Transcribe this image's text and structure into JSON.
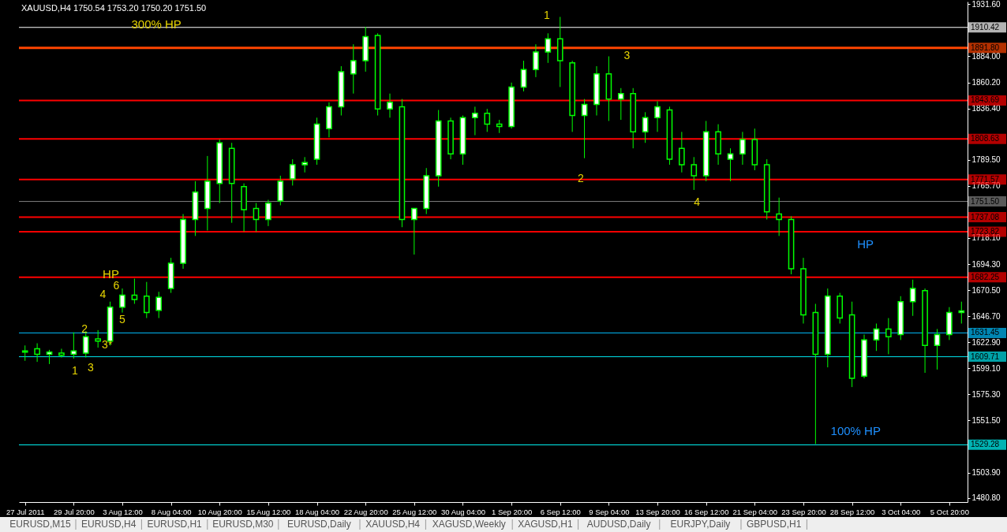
{
  "chart_data": {
    "type": "candlestick",
    "title": "XAUUSD,H4  1750.54 1753.20 1750.20 1751.50",
    "categories": [
      "27 Jul 2011",
      null,
      null,
      null,
      "29 Jul 20:00",
      null,
      null,
      null,
      "3 Aug 12:00",
      null,
      null,
      null,
      "8 Aug 04:00",
      null,
      null,
      null,
      "10 Aug 20:00",
      null,
      null,
      null,
      "15 Aug 12:00",
      null,
      null,
      null,
      "18 Aug 04:00",
      null,
      null,
      null,
      "22 Aug 20:00",
      null,
      null,
      null,
      "25 Aug 12:00",
      null,
      null,
      null,
      "30 Aug 04:00",
      null,
      null,
      null,
      "1 Sep 20:00",
      null,
      null,
      null,
      "6 Sep 12:00",
      null,
      null,
      null,
      "9 Sep 04:00",
      null,
      null,
      null,
      "13 Sep 20:00",
      null,
      null,
      null,
      "16 Sep 12:00",
      null,
      null,
      null,
      "21 Sep 04:00",
      null,
      null,
      null,
      "23 Sep 20:00",
      null,
      null,
      null,
      "28 Sep 12:00",
      null,
      null,
      null,
      "3 Oct 04:00",
      null,
      null,
      null,
      "5 Oct 20:00",
      null
    ],
    "ohlc": [
      [
        1614,
        1620,
        1606,
        1615
      ],
      [
        1617,
        1622,
        1605,
        1612
      ],
      [
        1612,
        1616,
        1603,
        1614
      ],
      [
        1613,
        1617,
        1609,
        1611
      ],
      [
        1612,
        1632,
        1608,
        1615
      ],
      [
        1613,
        1633,
        1609,
        1628
      ],
      [
        1626,
        1634,
        1618,
        1624
      ],
      [
        1624,
        1660,
        1620,
        1655
      ],
      [
        1655,
        1672,
        1650,
        1666
      ],
      [
        1666,
        1681,
        1658,
        1662
      ],
      [
        1665,
        1678,
        1645,
        1650
      ],
      [
        1652,
        1669,
        1645,
        1664
      ],
      [
        1672,
        1700,
        1668,
        1695
      ],
      [
        1695,
        1740,
        1690,
        1735
      ],
      [
        1735,
        1770,
        1720,
        1760
      ],
      [
        1745,
        1793,
        1725,
        1770
      ],
      [
        1768,
        1808,
        1750,
        1805
      ],
      [
        1800,
        1805,
        1732,
        1768
      ],
      [
        1765,
        1768,
        1724,
        1744
      ],
      [
        1745,
        1750,
        1724,
        1735
      ],
      [
        1735,
        1753,
        1729,
        1750
      ],
      [
        1752,
        1775,
        1748,
        1770
      ],
      [
        1772,
        1790,
        1766,
        1785
      ],
      [
        1785,
        1792,
        1778,
        1787
      ],
      [
        1790,
        1828,
        1785,
        1822
      ],
      [
        1818,
        1842,
        1810,
        1838
      ],
      [
        1838,
        1875,
        1830,
        1870
      ],
      [
        1868,
        1895,
        1850,
        1880
      ],
      [
        1880,
        1911,
        1870,
        1902
      ],
      [
        1903,
        1905,
        1830,
        1836
      ],
      [
        1836,
        1850,
        1828,
        1842
      ],
      [
        1838,
        1845,
        1728,
        1735
      ],
      [
        1735,
        1745,
        1703,
        1745
      ],
      [
        1745,
        1782,
        1740,
        1775
      ],
      [
        1775,
        1835,
        1765,
        1825
      ],
      [
        1825,
        1828,
        1790,
        1795
      ],
      [
        1795,
        1830,
        1785,
        1828
      ],
      [
        1828,
        1838,
        1812,
        1832
      ],
      [
        1832,
        1836,
        1815,
        1822
      ],
      [
        1822,
        1826,
        1814,
        1820
      ],
      [
        1820,
        1860,
        1818,
        1856
      ],
      [
        1856,
        1880,
        1852,
        1872
      ],
      [
        1872,
        1895,
        1865,
        1888
      ],
      [
        1888,
        1905,
        1878,
        1900
      ],
      [
        1900,
        1920,
        1856,
        1880
      ],
      [
        1878,
        1880,
        1815,
        1830
      ],
      [
        1830,
        1845,
        1791,
        1840
      ],
      [
        1840,
        1875,
        1830,
        1868
      ],
      [
        1868,
        1884,
        1825,
        1845
      ],
      [
        1845,
        1855,
        1826,
        1850
      ],
      [
        1850,
        1855,
        1800,
        1815
      ],
      [
        1815,
        1833,
        1805,
        1828
      ],
      [
        1828,
        1843,
        1815,
        1838
      ],
      [
        1835,
        1838,
        1785,
        1790
      ],
      [
        1800,
        1815,
        1778,
        1785
      ],
      [
        1785,
        1792,
        1762,
        1775
      ],
      [
        1775,
        1825,
        1770,
        1815
      ],
      [
        1815,
        1822,
        1785,
        1795
      ],
      [
        1790,
        1800,
        1770,
        1795
      ],
      [
        1795,
        1815,
        1785,
        1808
      ],
      [
        1808,
        1818,
        1780,
        1785
      ],
      [
        1785,
        1790,
        1735,
        1742
      ],
      [
        1740,
        1755,
        1720,
        1735
      ],
      [
        1735,
        1738,
        1685,
        1690
      ],
      [
        1690,
        1700,
        1640,
        1648
      ],
      [
        1650,
        1658,
        1530,
        1612
      ],
      [
        1612,
        1672,
        1600,
        1665
      ],
      [
        1665,
        1668,
        1640,
        1645
      ],
      [
        1648,
        1660,
        1582,
        1590
      ],
      [
        1592,
        1630,
        1590,
        1625
      ],
      [
        1625,
        1640,
        1615,
        1635
      ],
      [
        1635,
        1645,
        1612,
        1628
      ],
      [
        1630,
        1665,
        1625,
        1660
      ],
      [
        1660,
        1680,
        1647,
        1672
      ],
      [
        1670,
        1672,
        1595,
        1620
      ],
      [
        1620,
        1635,
        1598,
        1630
      ],
      [
        1630,
        1655,
        1625,
        1650
      ],
      [
        1650,
        1660,
        1640,
        1651.5
      ]
    ],
    "color": "#00ff00",
    "ylim": [
      1477,
      1934
    ],
    "yticks": [
      {
        "value": 1931.6,
        "label": "1931.60"
      },
      {
        "value": 1884,
        "label": "1884.00"
      },
      {
        "value": 1860.2,
        "label": "1860.20"
      },
      {
        "value": 1836.4,
        "label": "1836.40"
      },
      {
        "value": 1789.5,
        "label": "1789.50"
      },
      {
        "value": 1765.7,
        "label": "1765.70"
      },
      {
        "value": 1718.1,
        "label": "1718.10"
      },
      {
        "value": 1694.3,
        "label": "1694.30"
      },
      {
        "value": 1670.5,
        "label": "1670.50"
      },
      {
        "value": 1646.7,
        "label": "1646.70"
      },
      {
        "value": 1622.9,
        "label": "1622.90"
      },
      {
        "value": 1599.1,
        "label": "1599.10"
      },
      {
        "value": 1575.3,
        "label": "1575.30"
      },
      {
        "value": 1551.5,
        "label": "1551.50"
      },
      {
        "value": 1503.9,
        "label": "1503.90"
      },
      {
        "value": 1480.8,
        "label": "1480.80"
      }
    ],
    "ref_lines": [
      {
        "axis": "y",
        "value": 1910.42,
        "label": "1910.42",
        "color": "#ffffff"
      },
      {
        "axis": "y",
        "value": 1891.8,
        "label": "1891.80",
        "color": "#ff4500"
      },
      {
        "axis": "y",
        "value": 1843.69,
        "label": "1843.69",
        "color": "#ff0000"
      },
      {
        "axis": "y",
        "value": 1808.63,
        "label": "1808.63",
        "color": "#ff0000"
      },
      {
        "axis": "y",
        "value": 1771.57,
        "label": "1771.57",
        "color": "#ff0000"
      },
      {
        "axis": "y",
        "value": 1751.5,
        "label": "1751.50",
        "color": "#808080"
      },
      {
        "axis": "y",
        "value": 1737.08,
        "label": "1737.08",
        "color": "#ff0000"
      },
      {
        "axis": "y",
        "value": 1723.82,
        "label": "1723.82",
        "color": "#ff0000"
      },
      {
        "axis": "y",
        "value": 1682.25,
        "label": "1682.25",
        "color": "#ff0000"
      },
      {
        "axis": "y",
        "value": 1631.45,
        "label": "1631.45",
        "color": "#00bfff"
      },
      {
        "axis": "y",
        "value": 1609.71,
        "label": "1609.71",
        "color": "#00e5ee"
      },
      {
        "axis": "y",
        "value": 1529.28,
        "label": "1529.28",
        "color": "#00ffff"
      }
    ],
    "annotations": [
      "300% HP",
      "HP",
      "6",
      "4",
      "2",
      "5",
      "3*",
      "1",
      "3",
      "1",
      "3",
      "2",
      "4",
      "HP",
      "100% HP",
      "EURUSD,M15",
      "EURUSD,H4",
      "EURUSD,H1",
      "EURUSD,M30",
      "EURUSD,Daily",
      "XAUUSD,H4",
      "XAGUSD,Weekly",
      "XAGUSD,H1",
      "AUDUSD,Daily",
      "EURJPY,Daily",
      "GBPUSD,H1"
    ],
    "grid": false
  }
}
